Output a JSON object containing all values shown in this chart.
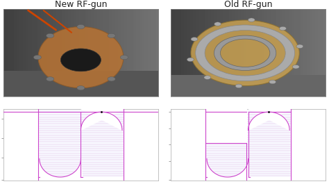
{
  "title_left": "New RF-gun",
  "title_right": "Old RF-gun",
  "bg_color": "#ffffff",
  "photo_bg": "#d0d0d0",
  "diagram_bg": "#f8f8ff",
  "line_color": "#cc88cc",
  "border_color": "#aaaaaa",
  "title_fontsize": 9,
  "fig_width": 4.74,
  "fig_height": 2.65,
  "dpi": 100
}
